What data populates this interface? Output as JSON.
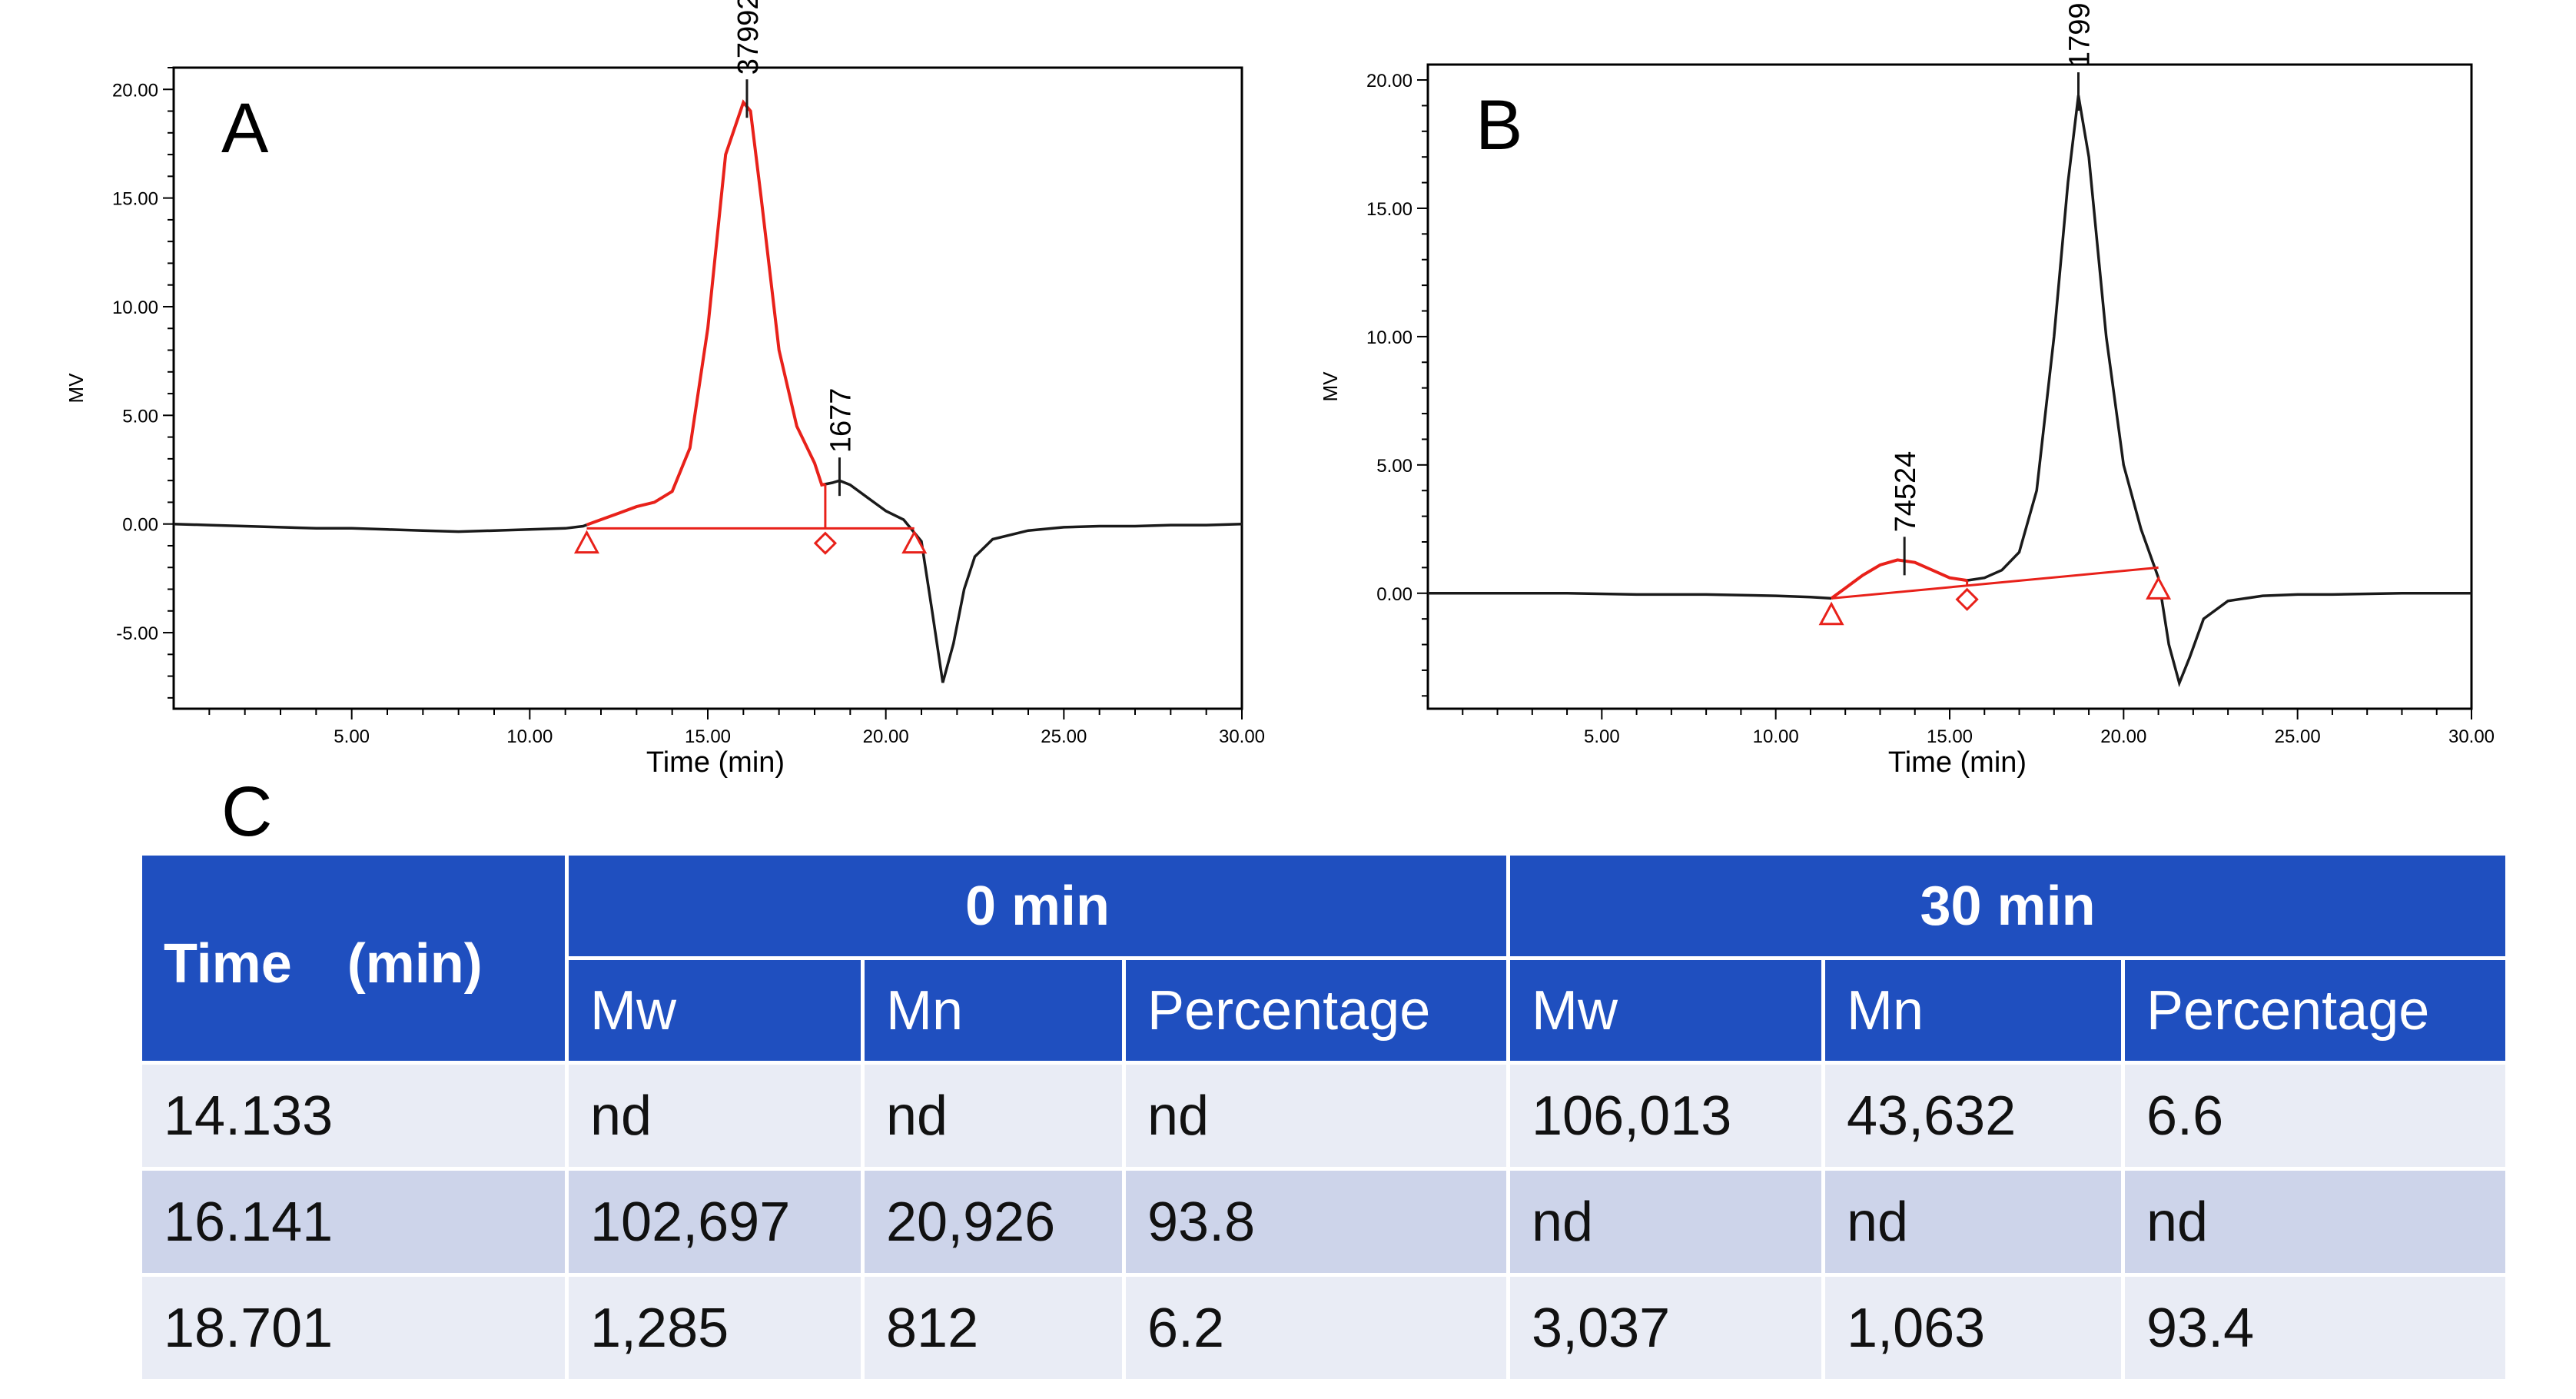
{
  "chart_data": [
    {
      "type": "line",
      "panel_label": "A",
      "xlabel": "Time (min)",
      "ylabel": "MV",
      "xlim": [
        0,
        30
      ],
      "ylim": [
        -8.5,
        21
      ],
      "x_ticks": [
        "5.00",
        "10.00",
        "15.00",
        "20.00",
        "25.00",
        "30.00"
      ],
      "y_ticks": [
        "-5.00",
        "0.00",
        "5.00",
        "10.00",
        "15.00",
        "20.00"
      ],
      "trace": {
        "x": [
          0,
          1,
          2,
          3,
          4,
          5,
          6,
          7,
          8,
          9,
          10,
          11,
          11.5,
          12,
          12.5,
          13,
          13.5,
          14,
          14.5,
          15,
          15.5,
          16,
          16.2,
          16.5,
          17,
          17.5,
          18,
          18.2,
          18.5,
          18.7,
          19,
          19.5,
          20,
          20.5,
          21,
          21.3,
          21.6,
          21.9,
          22.2,
          22.5,
          23,
          24,
          25,
          26,
          27,
          28,
          29,
          30
        ],
        "y": [
          0,
          -0.05,
          -0.1,
          -0.15,
          -0.2,
          -0.2,
          -0.25,
          -0.3,
          -0.35,
          -0.3,
          -0.25,
          -0.2,
          -0.1,
          0.2,
          0.5,
          0.8,
          1.0,
          1.5,
          3.5,
          9,
          17,
          19.4,
          19.0,
          15,
          8,
          4.5,
          2.8,
          1.8,
          1.9,
          2.0,
          1.8,
          1.2,
          0.6,
          0.2,
          -0.8,
          -4.0,
          -7.3,
          -5.5,
          -3.0,
          -1.5,
          -0.7,
          -0.3,
          -0.15,
          -0.1,
          -0.1,
          -0.05,
          -0.05,
          0
        ]
      },
      "highlight_x_range": [
        11.6,
        18.3
      ],
      "baseline": {
        "x": [
          11.6,
          20.8
        ],
        "y": [
          -0.2,
          -0.2
        ]
      },
      "markers": [
        {
          "shape": "triangle",
          "x": 11.6,
          "y": -0.6
        },
        {
          "shape": "diamond",
          "x": 18.3,
          "y": -0.6
        },
        {
          "shape": "triangle",
          "x": 20.8,
          "y": -0.6
        }
      ],
      "peak_labels": [
        {
          "text": "37992",
          "x": 16.1,
          "y": 19.4
        },
        {
          "text": "1677",
          "x": 18.7,
          "y": 2.0
        }
      ]
    },
    {
      "type": "line",
      "panel_label": "B",
      "xlabel": "Time (min)",
      "ylabel": "MV",
      "xlim": [
        0,
        30
      ],
      "ylim": [
        -4.5,
        20.6
      ],
      "x_ticks": [
        "5.00",
        "10.00",
        "15.00",
        "20.00",
        "25.00",
        "30.00"
      ],
      "y_ticks": [
        "0.00",
        "5.00",
        "10.00",
        "15.00",
        "20.00"
      ],
      "trace": {
        "x": [
          0,
          2,
          4,
          6,
          8,
          10,
          11,
          11.6,
          12,
          12.5,
          13,
          13.5,
          14,
          14.5,
          15,
          15.5,
          16,
          16.5,
          17,
          17.5,
          18,
          18.4,
          18.7,
          19,
          19.5,
          20,
          20.5,
          21,
          21.3,
          21.6,
          21.9,
          22.3,
          23,
          24,
          25,
          26,
          28,
          30
        ],
        "y": [
          0,
          0,
          0,
          -0.05,
          -0.05,
          -0.1,
          -0.15,
          -0.2,
          0.2,
          0.7,
          1.1,
          1.3,
          1.2,
          0.9,
          0.6,
          0.5,
          0.6,
          0.9,
          1.6,
          4,
          10,
          16,
          19.4,
          17,
          10,
          5,
          2.5,
          0.6,
          -2.0,
          -3.5,
          -2.5,
          -1.0,
          -0.3,
          -0.1,
          -0.05,
          -0.05,
          0,
          0
        ]
      },
      "highlight_x_range": [
        11.6,
        15.5
      ],
      "baseline": {
        "x": [
          11.6,
          21.0
        ],
        "y": [
          -0.2,
          1.0
        ]
      },
      "markers": [
        {
          "shape": "triangle",
          "x": 11.6,
          "y": -0.6
        },
        {
          "shape": "diamond",
          "x": 15.5,
          "y": 0.0
        },
        {
          "shape": "triangle",
          "x": 21.0,
          "y": 0.4
        }
      ],
      "peak_labels": [
        {
          "text": "74524",
          "x": 13.7,
          "y": 1.3
        },
        {
          "text": "1799",
          "x": 18.7,
          "y": 19.4
        }
      ]
    }
  ],
  "panel_c_label": "C",
  "table": {
    "time_header": "Time　(min)",
    "group_0": "0 min",
    "group_30": "30 min",
    "sub_headers": [
      "Mw",
      "Mn",
      "Percentage",
      "Mw",
      "Mn",
      "Percentage"
    ],
    "rows": [
      [
        "14.133",
        "nd",
        "nd",
        "nd",
        "106,013",
        "43,632",
        "6.6"
      ],
      [
        "16.141",
        "102,697",
        "20,926",
        "93.8",
        "nd",
        "nd",
        "nd"
      ],
      [
        "18.701",
        "1,285",
        "812",
        "6.2",
        "3,037",
        "1,063",
        "93.4"
      ]
    ]
  },
  "colors": {
    "trace": "#1a1a1a",
    "highlight": "#e8211a",
    "header": "#1f4fbf",
    "row_light": "#e9ecf5",
    "row_dark": "#cdd4ea"
  }
}
